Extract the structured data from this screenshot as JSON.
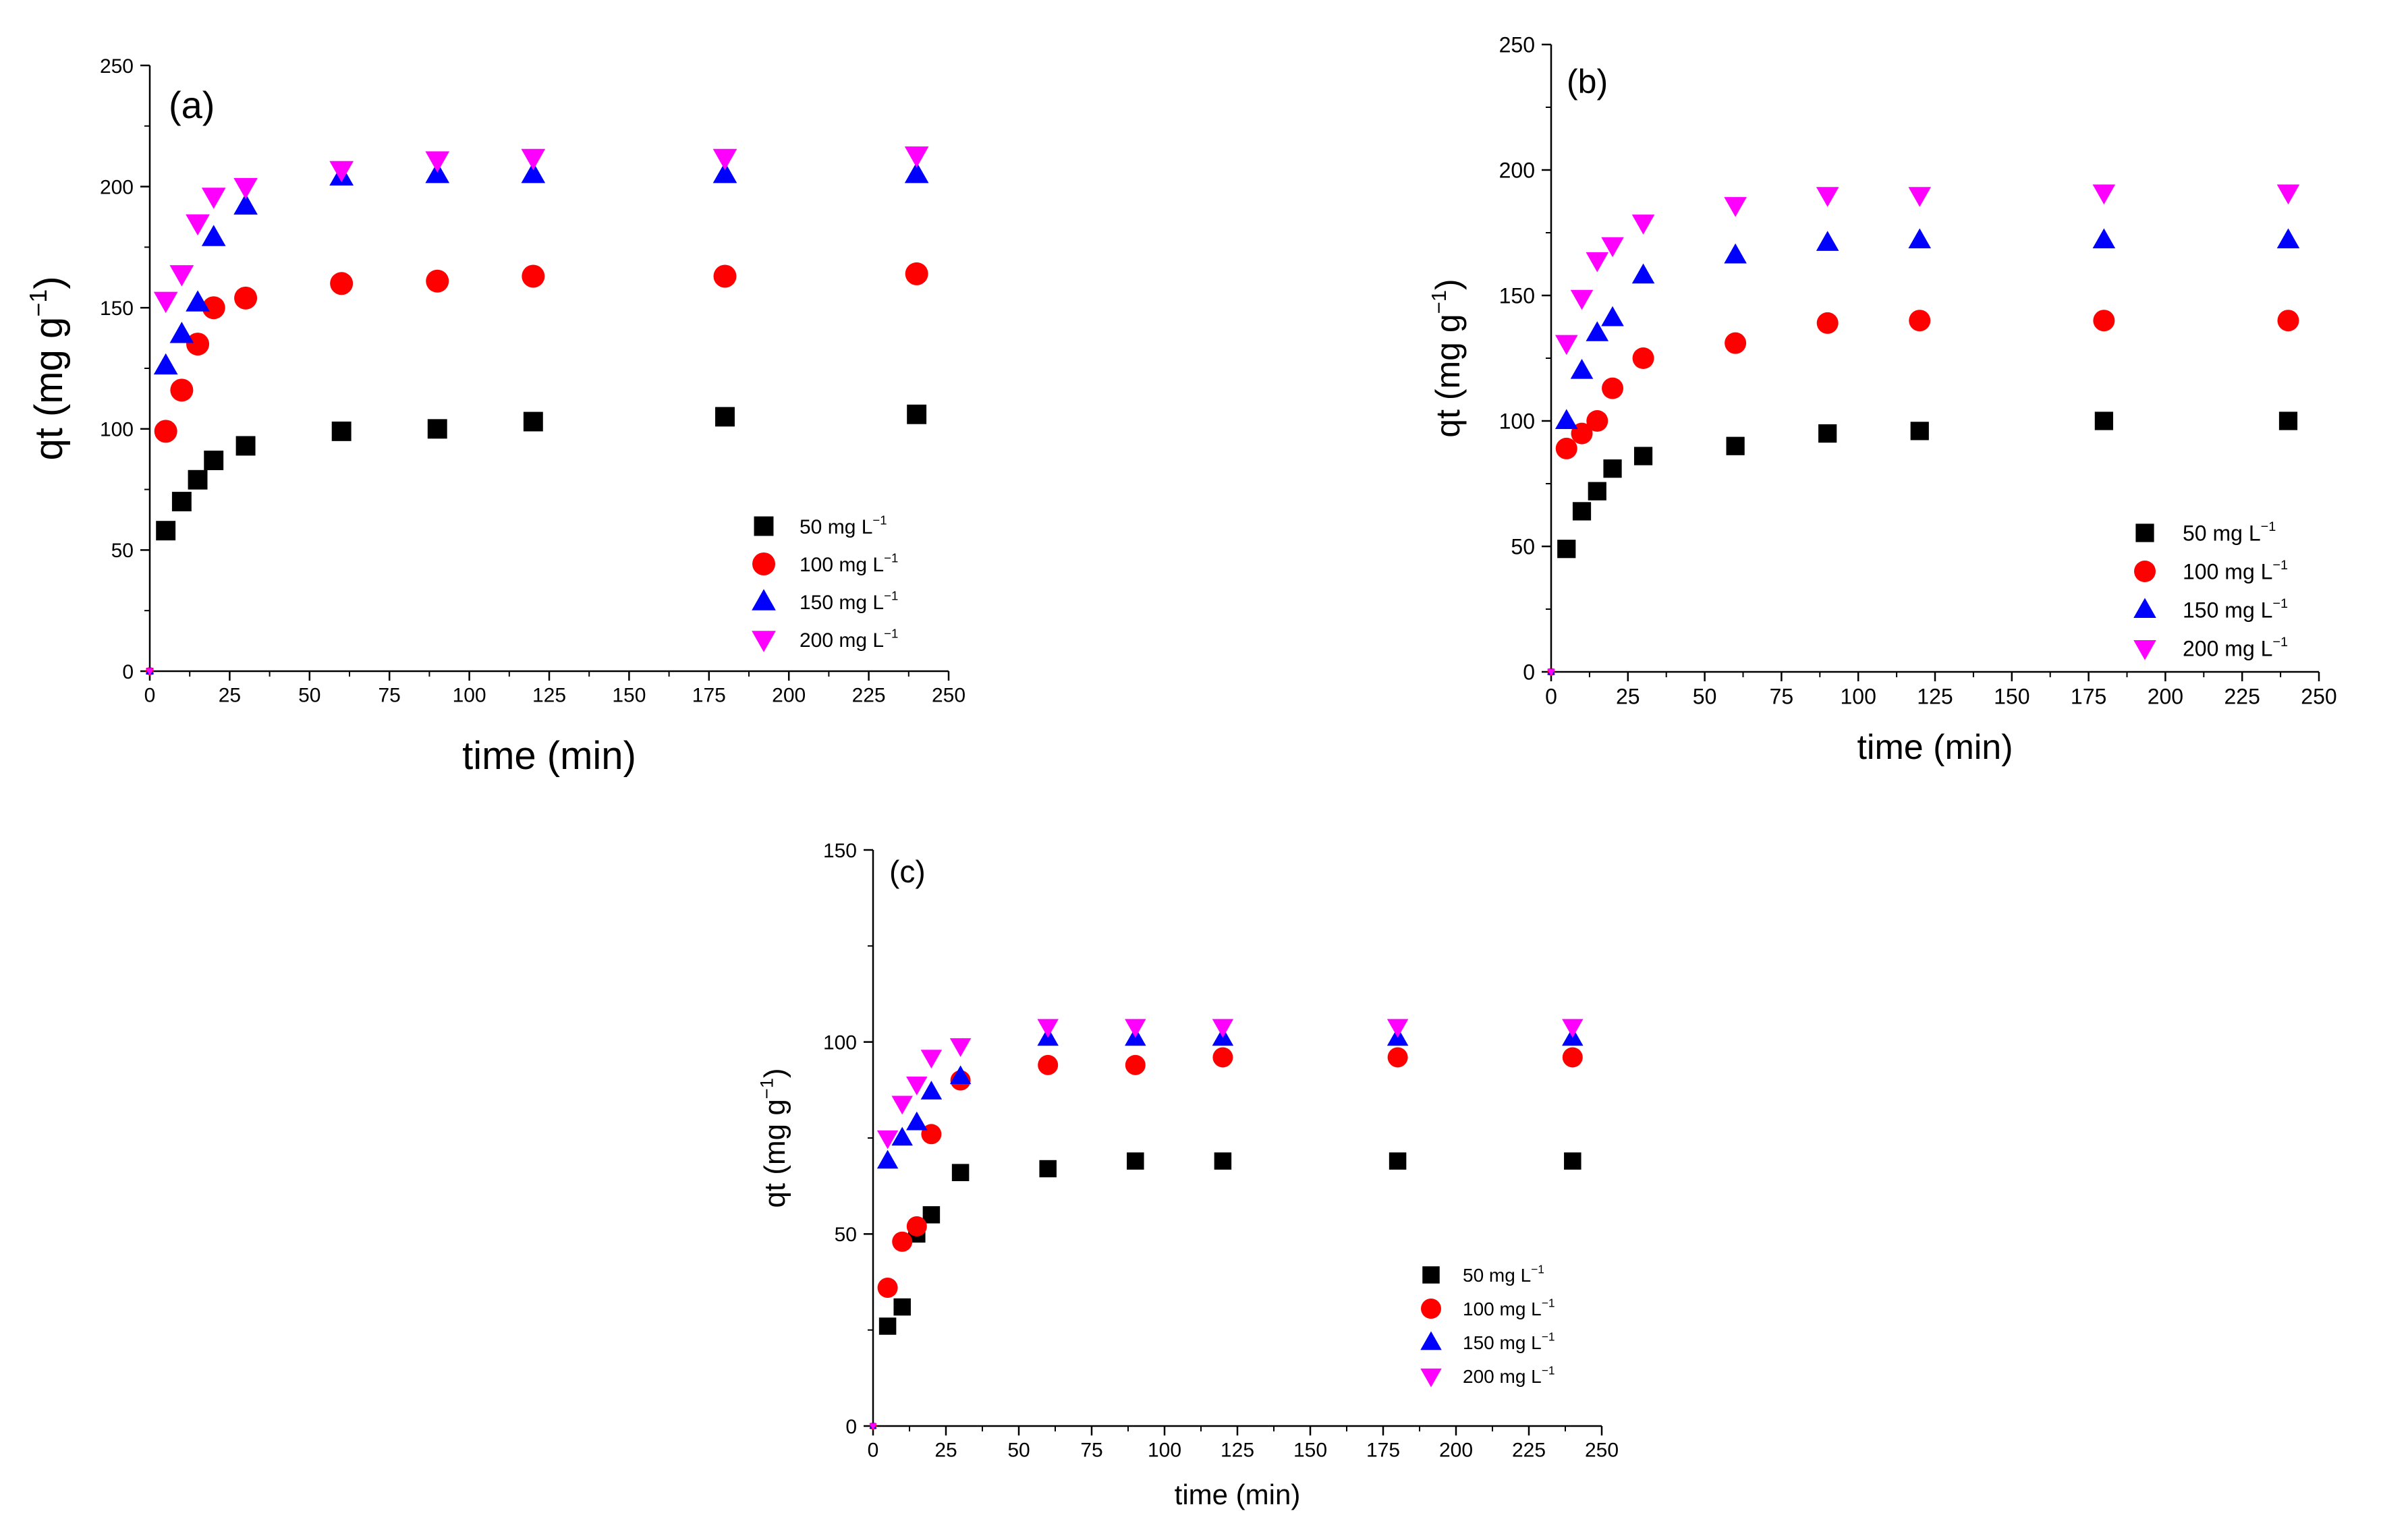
{
  "chart_data": [
    {
      "type": "scatter",
      "panel_label": "(a)",
      "xlabel": "time (min)",
      "ylabel": "qt (mg g",
      "ylabel_sup": "−1",
      "ylabel_close": ")",
      "xlim": [
        0,
        250
      ],
      "ylim": [
        0,
        250
      ],
      "xticks": [
        0,
        25,
        50,
        75,
        100,
        125,
        150,
        175,
        200,
        225,
        250
      ],
      "yticks": [
        0,
        50,
        100,
        150,
        200,
        250
      ],
      "grid": false,
      "legend_position": "bottom-right",
      "x": [
        0,
        5,
        10,
        15,
        20,
        30,
        60,
        90,
        120,
        180,
        240
      ],
      "series": [
        {
          "name": "50 mg L",
          "sup": "−1",
          "marker": "square",
          "color": "#000000",
          "values": [
            0,
            58,
            70,
            79,
            87,
            93,
            99,
            100,
            103,
            105,
            106
          ]
        },
        {
          "name": "100 mg L",
          "sup": "−1",
          "marker": "circle",
          "color": "#ff0000",
          "values": [
            0,
            99,
            116,
            135,
            150,
            154,
            160,
            161,
            163,
            163,
            164
          ]
        },
        {
          "name": "150 mg L",
          "sup": "−1",
          "marker": "triangle-up",
          "color": "#0000ff",
          "values": [
            0,
            126,
            139,
            152,
            179,
            192,
            204,
            205,
            205,
            205,
            205
          ]
        },
        {
          "name": "200  mg L",
          "sup": "−1",
          "marker": "triangle-down",
          "color": "#ff00ff",
          "values": [
            0,
            153,
            164,
            185,
            196,
            200,
            207,
            211,
            212,
            212,
            213
          ]
        }
      ]
    },
    {
      "type": "scatter",
      "panel_label": "(b)",
      "xlabel": "time (min)",
      "ylabel": "qt (mg g",
      "ylabel_sup": "−1",
      "ylabel_close": ")",
      "xlim": [
        0,
        250
      ],
      "ylim": [
        0,
        250
      ],
      "xticks": [
        0,
        25,
        50,
        75,
        100,
        125,
        150,
        175,
        200,
        225,
        250
      ],
      "yticks": [
        0,
        50,
        100,
        150,
        200,
        250
      ],
      "grid": false,
      "legend_position": "bottom-right",
      "x": [
        0,
        5,
        10,
        15,
        20,
        30,
        60,
        90,
        120,
        180,
        240
      ],
      "series": [
        {
          "name": "50 mg L",
          "sup": "−1",
          "marker": "square",
          "color": "#000000",
          "values": [
            0,
            49,
            64,
            72,
            81,
            86,
            90,
            95,
            96,
            100,
            100
          ]
        },
        {
          "name": "100 mg L",
          "sup": "−1",
          "marker": "circle",
          "color": "#ff0000",
          "values": [
            0,
            89,
            95,
            100,
            113,
            125,
            131,
            139,
            140,
            140,
            140
          ]
        },
        {
          "name": "150 mg L",
          "sup": "−1",
          "marker": "triangle-up",
          "color": "#0000ff",
          "values": [
            0,
            100,
            120,
            135,
            141,
            158,
            166,
            171,
            172,
            172,
            172
          ]
        },
        {
          "name": "200  mg L",
          "sup": "−1",
          "marker": "triangle-down",
          "color": "#ff00ff",
          "values": [
            0,
            131,
            149,
            164,
            170,
            179,
            186,
            190,
            190,
            191,
            191
          ]
        }
      ]
    },
    {
      "type": "scatter",
      "panel_label": "(c)",
      "xlabel": "time (min)",
      "ylabel": "qt (mg g",
      "ylabel_sup": "−1",
      "ylabel_close": ")",
      "xlim": [
        0,
        250
      ],
      "ylim": [
        0,
        150
      ],
      "xticks": [
        0,
        25,
        50,
        75,
        100,
        125,
        150,
        175,
        200,
        225,
        250
      ],
      "yticks": [
        0,
        50,
        100,
        150
      ],
      "grid": false,
      "legend_position": "bottom-right",
      "x": [
        0,
        5,
        10,
        15,
        20,
        30,
        60,
        90,
        120,
        180,
        240
      ],
      "series": [
        {
          "name": "50 mg L",
          "sup": "−1",
          "marker": "square",
          "color": "#000000",
          "values": [
            0,
            26,
            31,
            50,
            55,
            66,
            67,
            69,
            69,
            69,
            69
          ]
        },
        {
          "name": "100 mg L",
          "sup": "−1",
          "marker": "circle",
          "color": "#ff0000",
          "values": [
            0,
            36,
            48,
            52,
            76,
            90,
            94,
            94,
            96,
            96,
            96
          ]
        },
        {
          "name": "150 mg L",
          "sup": "−1",
          "marker": "triangle-up",
          "color": "#0000ff",
          "values": [
            0,
            69,
            75,
            79,
            87,
            91,
            101,
            101,
            101,
            101,
            101
          ]
        },
        {
          "name": "200  mg L",
          "sup": "−1",
          "marker": "triangle-down",
          "color": "#ff00ff",
          "values": [
            0,
            75,
            84,
            89,
            96,
            99,
            104,
            104,
            104,
            104,
            104
          ]
        }
      ]
    }
  ]
}
